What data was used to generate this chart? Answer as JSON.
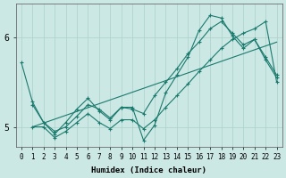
{
  "xlabel": "Humidex (Indice chaleur)",
  "ylabel": "",
  "xlim": [
    -0.5,
    23.5
  ],
  "ylim": [
    4.78,
    6.38
  ],
  "yticks": [
    5,
    6
  ],
  "xticks": [
    0,
    1,
    2,
    3,
    4,
    5,
    6,
    7,
    8,
    9,
    10,
    11,
    12,
    13,
    14,
    15,
    16,
    17,
    18,
    19,
    20,
    21,
    22,
    23
  ],
  "bg_color": "#cce8e4",
  "line_color": "#1a7a6e",
  "grid_color": "#aad0ca",
  "series": [
    {
      "x": [
        0,
        1,
        2,
        3,
        4,
        5,
        6,
        7,
        8,
        9,
        10,
        11,
        12,
        13,
        14,
        15,
        16,
        17,
        18,
        19,
        20,
        21,
        22,
        23
      ],
      "y": [
        5.72,
        5.28,
        5.05,
        4.92,
        5.05,
        5.2,
        5.32,
        5.18,
        5.08,
        5.22,
        5.22,
        4.85,
        5.02,
        5.38,
        5.58,
        5.78,
        6.08,
        6.25,
        6.22,
        6.02,
        5.88,
        5.98,
        5.75,
        5.55
      ]
    },
    {
      "x": [
        1,
        2,
        3,
        4,
        5,
        6,
        7,
        8,
        9,
        10,
        11,
        12,
        13,
        14,
        15,
        16,
        17,
        18,
        19,
        20,
        21,
        22,
        23
      ],
      "y": [
        5.25,
        5.05,
        4.95,
        5.0,
        5.12,
        5.25,
        5.2,
        5.1,
        5.22,
        5.2,
        5.15,
        5.35,
        5.5,
        5.65,
        5.82,
        5.95,
        6.1,
        6.18,
        6.05,
        5.92,
        5.98,
        5.78,
        5.58
      ]
    },
    {
      "x": [
        1,
        2,
        3,
        4,
        5,
        6,
        7,
        8,
        9,
        10,
        11,
        12,
        13,
        14,
        15,
        16,
        17,
        18,
        19,
        20,
        21,
        22,
        23
      ],
      "y": [
        5.0,
        5.0,
        4.88,
        4.95,
        5.05,
        5.15,
        5.05,
        4.98,
        5.08,
        5.08,
        4.98,
        5.08,
        5.22,
        5.35,
        5.48,
        5.62,
        5.75,
        5.88,
        5.98,
        6.05,
        6.1,
        6.18,
        5.5
      ]
    },
    {
      "x": [
        1,
        23
      ],
      "y": [
        5.0,
        5.95
      ]
    }
  ]
}
